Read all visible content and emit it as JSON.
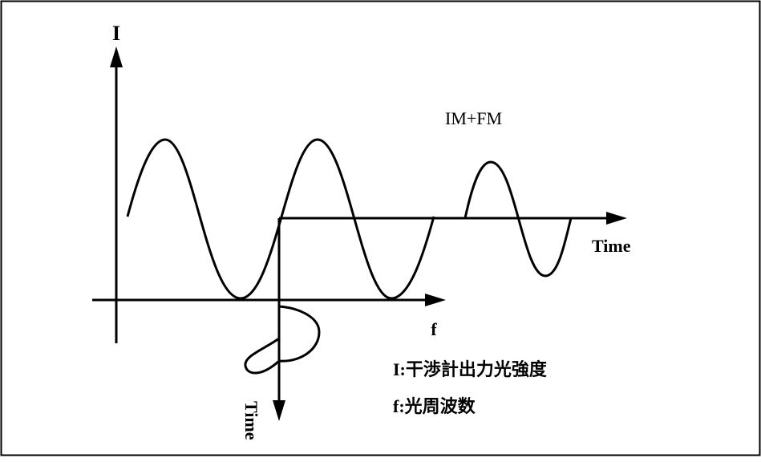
{
  "diagram": {
    "axis_intensity_label": "I",
    "axis_frequency_label": "f",
    "axis_time_horizontal_label": "Time",
    "axis_time_vertical_label": "Time",
    "modulation_label": "IM+FM",
    "legend": {
      "intensity": "I:干渉計出力光強度",
      "frequency": "f:光周波数"
    },
    "colors": {
      "stroke": "#000000",
      "background": "#ffffff"
    }
  }
}
